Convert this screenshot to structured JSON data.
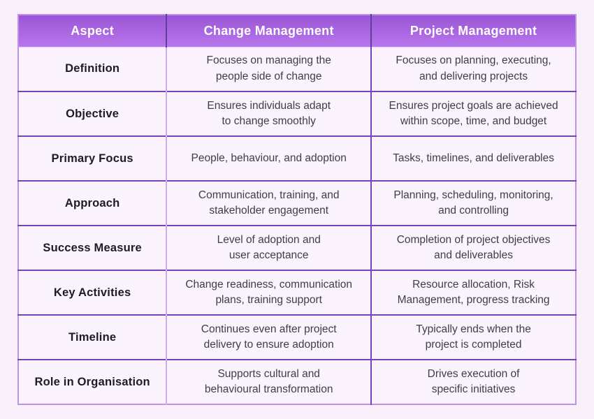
{
  "page": {
    "background": "#f9f0fb"
  },
  "colors": {
    "header_gradient_top": "#9a57d5",
    "header_gradient_bottom": "#b877ec",
    "header_text": "#ffffff",
    "cell_background": "#fbf4fe",
    "grid_dark_purple": "#7743bd",
    "grid_light_lilac": "#cdaeec",
    "outer_border": "#bd93e8",
    "aspect_text": "#1d1d1f",
    "cell_text": "#413c49"
  },
  "chart_data": {
    "type": "table",
    "title": "",
    "columns": [
      "Aspect",
      "Change Management",
      "Project Management"
    ],
    "rows": [
      {
        "aspect": "Definition",
        "change_management": "Focuses on managing the\npeople side of change",
        "project_management": "Focuses on planning, executing,\nand delivering projects"
      },
      {
        "aspect": "Objective",
        "change_management": "Ensures individuals adapt\nto change smoothly",
        "project_management": "Ensures project goals are achieved\nwithin scope, time, and budget"
      },
      {
        "aspect": "Primary Focus",
        "change_management": "People, behaviour, and adoption",
        "project_management": "Tasks, timelines, and deliverables"
      },
      {
        "aspect": "Approach",
        "change_management": "Communication, training, and\nstakeholder engagement",
        "project_management": "Planning, scheduling, monitoring,\nand controlling"
      },
      {
        "aspect": "Success Measure",
        "change_management": "Level of adoption and\nuser acceptance",
        "project_management": "Completion of project objectives\nand deliverables"
      },
      {
        "aspect": "Key Activities",
        "change_management": "Change readiness, communication\nplans, training support",
        "project_management": "Resource allocation, Risk\nManagement, progress tracking"
      },
      {
        "aspect": "Timeline",
        "change_management": "Continues even after project\ndelivery to ensure adoption",
        "project_management": "Typically ends when the\nproject is completed"
      },
      {
        "aspect": "Role in Organisation",
        "change_management": "Supports cultural and\nbehavioural transformation",
        "project_management": "Drives execution of\nspecific initiatives"
      }
    ]
  }
}
